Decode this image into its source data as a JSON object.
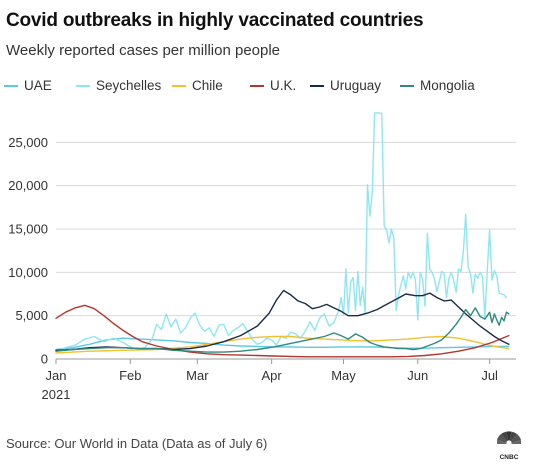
{
  "title": "Covid outbreaks in highly vaccinated countries",
  "subtitle": "Weekly reported cases per million people",
  "source": "Source: Our World in Data (Data as of July 6)",
  "logo_text": "CNBC",
  "chart_data": {
    "type": "line",
    "title": "Covid outbreaks in highly vaccinated countries",
    "subtitle": "Weekly reported cases per million people",
    "xlabel": "",
    "ylabel": "",
    "x_tick_labels": [
      "Jan",
      "Feb",
      "Mar",
      "Apr",
      "May",
      "Jun",
      "Jul"
    ],
    "x_tick_days": [
      0,
      31,
      59,
      90,
      120,
      151,
      181
    ],
    "x_sub_label": "2021",
    "ylim": [
      0,
      28500
    ],
    "xlim_days": [
      0,
      192
    ],
    "y_ticks": [
      0,
      5000,
      10000,
      15000,
      20000,
      25000
    ],
    "y_tick_labels": [
      "0",
      "5,000",
      "10,000",
      "15,000",
      "20,000",
      "25,000"
    ],
    "grid": true,
    "legend": "top",
    "series": [
      {
        "name": "UAE",
        "color": "#5bc8e8",
        "points": [
          [
            0,
            1100
          ],
          [
            7,
            1300
          ],
          [
            14,
            1700
          ],
          [
            21,
            2200
          ],
          [
            28,
            2400
          ],
          [
            35,
            2300
          ],
          [
            42,
            2200
          ],
          [
            49,
            2100
          ],
          [
            56,
            1900
          ],
          [
            63,
            1800
          ],
          [
            70,
            1600
          ],
          [
            77,
            1500
          ],
          [
            84,
            1450
          ],
          [
            91,
            1400
          ],
          [
            98,
            1400
          ],
          [
            105,
            1350
          ],
          [
            112,
            1350
          ],
          [
            119,
            1400
          ],
          [
            126,
            1400
          ],
          [
            133,
            1400
          ],
          [
            140,
            1300
          ],
          [
            147,
            1250
          ],
          [
            154,
            1250
          ],
          [
            161,
            1300
          ],
          [
            168,
            1350
          ],
          [
            175,
            1400
          ],
          [
            182,
            1450
          ],
          [
            189,
            1450
          ]
        ]
      },
      {
        "name": "Seychelles",
        "color": "#8ee6f2",
        "points": [
          [
            0,
            900
          ],
          [
            4,
            1300
          ],
          [
            8,
            1600
          ],
          [
            12,
            2300
          ],
          [
            16,
            2600
          ],
          [
            20,
            2000
          ],
          [
            24,
            2400
          ],
          [
            28,
            1900
          ],
          [
            31,
            1400
          ],
          [
            34,
            1100
          ],
          [
            37,
            1300
          ],
          [
            40,
            2200
          ],
          [
            42,
            4000
          ],
          [
            44,
            3400
          ],
          [
            46,
            5200
          ],
          [
            48,
            3700
          ],
          [
            50,
            4600
          ],
          [
            52,
            3000
          ],
          [
            54,
            3600
          ],
          [
            56,
            4700
          ],
          [
            58,
            5300
          ],
          [
            60,
            3900
          ],
          [
            62,
            3200
          ],
          [
            64,
            3600
          ],
          [
            66,
            2600
          ],
          [
            68,
            3900
          ],
          [
            70,
            4000
          ],
          [
            72,
            2700
          ],
          [
            74,
            3300
          ],
          [
            76,
            3600
          ],
          [
            78,
            4100
          ],
          [
            80,
            3200
          ],
          [
            82,
            2200
          ],
          [
            84,
            1700
          ],
          [
            86,
            1900
          ],
          [
            88,
            2400
          ],
          [
            90,
            2200
          ],
          [
            92,
            1600
          ],
          [
            94,
            2600
          ],
          [
            96,
            2400
          ],
          [
            98,
            3100
          ],
          [
            100,
            2900
          ],
          [
            102,
            2400
          ],
          [
            104,
            3200
          ],
          [
            106,
            4300
          ],
          [
            108,
            3300
          ],
          [
            110,
            4700
          ],
          [
            112,
            5200
          ],
          [
            114,
            3800
          ],
          [
            116,
            4200
          ],
          [
            118,
            5600
          ],
          [
            119,
            7100
          ],
          [
            120,
            5100
          ],
          [
            121,
            10400
          ],
          [
            122,
            5300
          ],
          [
            123,
            8900
          ],
          [
            124,
            9400
          ],
          [
            125,
            5600
          ],
          [
            126,
            10100
          ],
          [
            127,
            6200
          ],
          [
            128,
            8300
          ],
          [
            129,
            5300
          ],
          [
            130,
            20100
          ],
          [
            131,
            16500
          ],
          [
            132,
            19200
          ],
          [
            133,
            28400
          ],
          [
            134,
            28400
          ],
          [
            135,
            28400
          ],
          [
            136,
            28300
          ],
          [
            137,
            15300
          ],
          [
            138,
            14900
          ],
          [
            139,
            13400
          ],
          [
            140,
            15000
          ],
          [
            141,
            14000
          ],
          [
            142,
            5600
          ],
          [
            143,
            7400
          ],
          [
            144,
            8600
          ],
          [
            145,
            9600
          ],
          [
            146,
            8100
          ],
          [
            147,
            10000
          ],
          [
            148,
            9300
          ],
          [
            149,
            10000
          ],
          [
            150,
            9200
          ],
          [
            151,
            4500
          ],
          [
            152,
            10000
          ],
          [
            153,
            9200
          ],
          [
            154,
            6100
          ],
          [
            155,
            14500
          ],
          [
            156,
            10300
          ],
          [
            157,
            10000
          ],
          [
            158,
            9200
          ],
          [
            159,
            7800
          ],
          [
            160,
            8900
          ],
          [
            161,
            10100
          ],
          [
            162,
            9900
          ],
          [
            163,
            7100
          ],
          [
            164,
            9300
          ],
          [
            165,
            10000
          ],
          [
            166,
            9100
          ],
          [
            167,
            7700
          ],
          [
            168,
            10400
          ],
          [
            169,
            10100
          ],
          [
            170,
            12300
          ],
          [
            171,
            16700
          ],
          [
            172,
            10600
          ],
          [
            173,
            9900
          ],
          [
            174,
            7600
          ],
          [
            175,
            9800
          ],
          [
            176,
            9300
          ],
          [
            177,
            10000
          ],
          [
            178,
            9500
          ],
          [
            179,
            4800
          ],
          [
            180,
            10200
          ],
          [
            181,
            14900
          ],
          [
            182,
            9100
          ],
          [
            183,
            10200
          ],
          [
            184,
            9600
          ],
          [
            185,
            7600
          ],
          [
            186,
            7500
          ],
          [
            187,
            7400
          ],
          [
            188,
            7100
          ]
        ]
      },
      {
        "name": "Chile",
        "color": "#f2c12e",
        "points": [
          [
            0,
            700
          ],
          [
            14,
            900
          ],
          [
            28,
            1000
          ],
          [
            42,
            1100
          ],
          [
            56,
            1400
          ],
          [
            63,
            1700
          ],
          [
            70,
            2000
          ],
          [
            77,
            2300
          ],
          [
            84,
            2500
          ],
          [
            91,
            2600
          ],
          [
            98,
            2600
          ],
          [
            105,
            2400
          ],
          [
            112,
            2300
          ],
          [
            119,
            2200
          ],
          [
            126,
            2100
          ],
          [
            133,
            2100
          ],
          [
            140,
            2200
          ],
          [
            147,
            2300
          ],
          [
            154,
            2500
          ],
          [
            161,
            2600
          ],
          [
            168,
            2400
          ],
          [
            175,
            2000
          ],
          [
            182,
            1500
          ],
          [
            189,
            1200
          ]
        ]
      },
      {
        "name": "U.K.",
        "color": "#b5362e",
        "points": [
          [
            0,
            4700
          ],
          [
            4,
            5400
          ],
          [
            8,
            5900
          ],
          [
            12,
            6200
          ],
          [
            16,
            5800
          ],
          [
            20,
            5000
          ],
          [
            24,
            4100
          ],
          [
            28,
            3300
          ],
          [
            32,
            2600
          ],
          [
            36,
            2000
          ],
          [
            42,
            1500
          ],
          [
            49,
            1100
          ],
          [
            56,
            800
          ],
          [
            63,
            600
          ],
          [
            70,
            500
          ],
          [
            77,
            450
          ],
          [
            84,
            400
          ],
          [
            91,
            350
          ],
          [
            98,
            300
          ],
          [
            105,
            250
          ],
          [
            112,
            250
          ],
          [
            119,
            250
          ],
          [
            126,
            250
          ],
          [
            133,
            250
          ],
          [
            140,
            250
          ],
          [
            147,
            300
          ],
          [
            154,
            400
          ],
          [
            161,
            600
          ],
          [
            168,
            900
          ],
          [
            175,
            1300
          ],
          [
            182,
            1900
          ],
          [
            189,
            2700
          ]
        ]
      },
      {
        "name": "Uruguay",
        "color": "#1c2b4a",
        "points": [
          [
            0,
            1000
          ],
          [
            7,
            1100
          ],
          [
            14,
            1300
          ],
          [
            21,
            1400
          ],
          [
            28,
            1300
          ],
          [
            35,
            1200
          ],
          [
            42,
            1200
          ],
          [
            49,
            1100
          ],
          [
            56,
            1200
          ],
          [
            63,
            1500
          ],
          [
            70,
            2000
          ],
          [
            77,
            2700
          ],
          [
            84,
            3800
          ],
          [
            89,
            5300
          ],
          [
            92,
            6800
          ],
          [
            95,
            7900
          ],
          [
            98,
            7400
          ],
          [
            101,
            6700
          ],
          [
            104,
            6400
          ],
          [
            107,
            5800
          ],
          [
            110,
            6000
          ],
          [
            113,
            6300
          ],
          [
            116,
            5900
          ],
          [
            119,
            5500
          ],
          [
            122,
            5000
          ],
          [
            126,
            5000
          ],
          [
            130,
            5300
          ],
          [
            134,
            5700
          ],
          [
            138,
            6300
          ],
          [
            142,
            6900
          ],
          [
            146,
            7500
          ],
          [
            150,
            7300
          ],
          [
            153,
            7300
          ],
          [
            156,
            7600
          ],
          [
            159,
            7100
          ],
          [
            162,
            6700
          ],
          [
            165,
            6800
          ],
          [
            168,
            6000
          ],
          [
            171,
            5200
          ],
          [
            174,
            4500
          ],
          [
            177,
            3800
          ],
          [
            180,
            3200
          ],
          [
            183,
            2600
          ],
          [
            186,
            2100
          ],
          [
            189,
            1700
          ]
        ]
      },
      {
        "name": "Mongolia",
        "color": "#2e8a7f",
        "points": [
          [
            0,
            900
          ],
          [
            7,
            1100
          ],
          [
            14,
            1200
          ],
          [
            21,
            1300
          ],
          [
            28,
            1300
          ],
          [
            35,
            1200
          ],
          [
            42,
            1200
          ],
          [
            49,
            1000
          ],
          [
            56,
            900
          ],
          [
            63,
            800
          ],
          [
            70,
            800
          ],
          [
            77,
            900
          ],
          [
            84,
            1100
          ],
          [
            91,
            1400
          ],
          [
            98,
            1800
          ],
          [
            105,
            2200
          ],
          [
            112,
            2600
          ],
          [
            116,
            3000
          ],
          [
            119,
            2700
          ],
          [
            122,
            2300
          ],
          [
            125,
            2900
          ],
          [
            128,
            2500
          ],
          [
            131,
            1900
          ],
          [
            134,
            1600
          ],
          [
            137,
            1400
          ],
          [
            140,
            1300
          ],
          [
            143,
            1200
          ],
          [
            146,
            1200
          ],
          [
            149,
            1100
          ],
          [
            152,
            1200
          ],
          [
            155,
            1500
          ],
          [
            158,
            1800
          ],
          [
            161,
            2200
          ],
          [
            164,
            3000
          ],
          [
            167,
            4000
          ],
          [
            169,
            4800
          ],
          [
            171,
            5700
          ],
          [
            173,
            5000
          ],
          [
            175,
            5900
          ],
          [
            177,
            4900
          ],
          [
            179,
            4600
          ],
          [
            181,
            5400
          ],
          [
            182,
            4200
          ],
          [
            183,
            5200
          ],
          [
            184,
            4500
          ],
          [
            185,
            3900
          ],
          [
            186,
            4800
          ],
          [
            187,
            4400
          ],
          [
            188,
            5400
          ],
          [
            189,
            5200
          ]
        ]
      }
    ]
  }
}
